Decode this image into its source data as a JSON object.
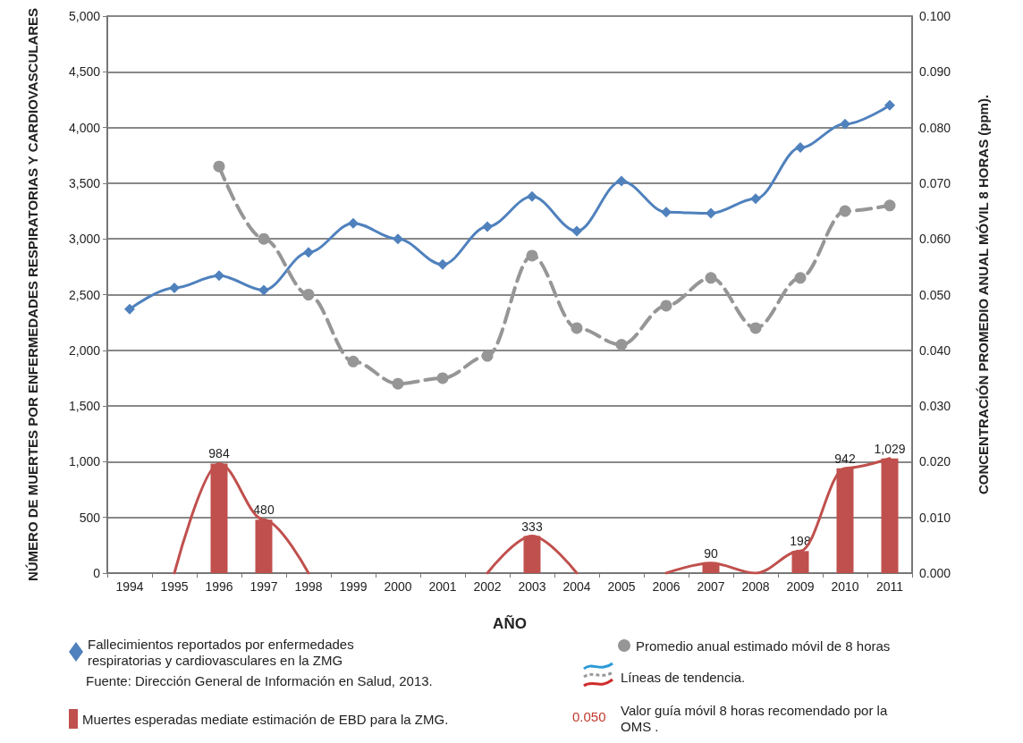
{
  "chart_data": {
    "type": "line",
    "xlabel": "AÑO",
    "ylabel": "NÚMERO DE MUERTES POR ENFERMEDADES RESPIRATORIAS Y CARDIOVASCULARES",
    "y2label": "CONCENTRACIÓN PROMEDIO ANUAL MÓVIL 8 HORAS (ppm).",
    "categories": [
      "1994",
      "1995",
      "1996",
      "1997",
      "1998",
      "1999",
      "2000",
      "2001",
      "2002",
      "2003",
      "2004",
      "2005",
      "2006",
      "2007",
      "2008",
      "2009",
      "2010",
      "2011"
    ],
    "series": [
      {
        "name": "Fallecimientos reportados por enfermedades respiratorias y cardiovasculares en la ZMG",
        "color": "#4f81bd",
        "marker": "diamond",
        "line_style": "solid",
        "values": [
          2370,
          2560,
          2670,
          2540,
          2880,
          3140,
          3000,
          2770,
          3110,
          3380,
          3070,
          3520,
          3240,
          3230,
          3360,
          3820,
          4030,
          4200
        ]
      },
      {
        "type": "bar",
        "name": "Muertes esperadas mediate estimación de EBD para la ZMG.",
        "color": "#c0504d",
        "values": [
          null,
          null,
          984,
          480,
          null,
          null,
          null,
          null,
          null,
          333,
          null,
          null,
          null,
          90,
          null,
          198,
          942,
          1029
        ],
        "value_labels": [
          null,
          null,
          "984",
          "480",
          null,
          null,
          null,
          null,
          null,
          "333",
          null,
          null,
          null,
          "90",
          null,
          "198",
          "942",
          "1,029"
        ]
      },
      {
        "color": "#c0504d",
        "marker": "none",
        "line_style": "solid",
        "values": [
          null,
          0,
          984,
          480,
          0,
          null,
          null,
          null,
          0,
          333,
          0,
          null,
          0,
          90,
          0,
          198,
          942,
          1029
        ]
      },
      {
        "axis": "y2",
        "name": "Promedio anual estimado móvil de 8 horas",
        "color": "#969696",
        "marker": "circle",
        "line_style": "dashed",
        "values": [
          null,
          null,
          0.073,
          0.06,
          0.05,
          0.038,
          0.034,
          0.035,
          0.039,
          0.057,
          0.044,
          0.041,
          0.048,
          0.053,
          0.044,
          0.053,
          0.065,
          0.066
        ]
      }
    ],
    "ylim": [
      0,
      5000
    ],
    "yticks": [
      {
        "value": 0,
        "label": "0"
      },
      {
        "value": 500,
        "label": "500"
      },
      {
        "value": 1000,
        "label": "1,000"
      },
      {
        "value": 1500,
        "label": "1,500"
      },
      {
        "value": 2000,
        "label": "2,000"
      },
      {
        "value": 2500,
        "label": "2,500"
      },
      {
        "value": 3000,
        "label": "3,000"
      },
      {
        "value": 3500,
        "label": "3,500"
      },
      {
        "value": 4000,
        "label": "4,000"
      },
      {
        "value": 4500,
        "label": "4,500"
      },
      {
        "value": 5000,
        "label": "5,000"
      }
    ],
    "y2lim": [
      0,
      0.1
    ],
    "y2ticks": [
      {
        "value": 0,
        "label": "0.000"
      },
      {
        "value": 0.01,
        "label": "0.010"
      },
      {
        "value": 0.02,
        "label": "0.020"
      },
      {
        "value": 0.03,
        "label": "0.030"
      },
      {
        "value": 0.04,
        "label": "0.040"
      },
      {
        "value": 0.05,
        "label": "0.050"
      },
      {
        "value": 0.06,
        "label": "0.060"
      },
      {
        "value": 0.07,
        "label": "0.070"
      },
      {
        "value": 0.08,
        "label": "0.080"
      },
      {
        "value": 0.09,
        "label": "0.090"
      },
      {
        "value": 0.1,
        "label": "0.100"
      }
    ],
    "annotations": [
      "Fuente: Dirección General de Información en Salud, 2013.",
      "Líneas de tendencia.",
      "0.050",
      "Valor guía móvil 8 horas recomendado por la OMS ."
    ],
    "grid": "y",
    "legend": "bottom"
  }
}
